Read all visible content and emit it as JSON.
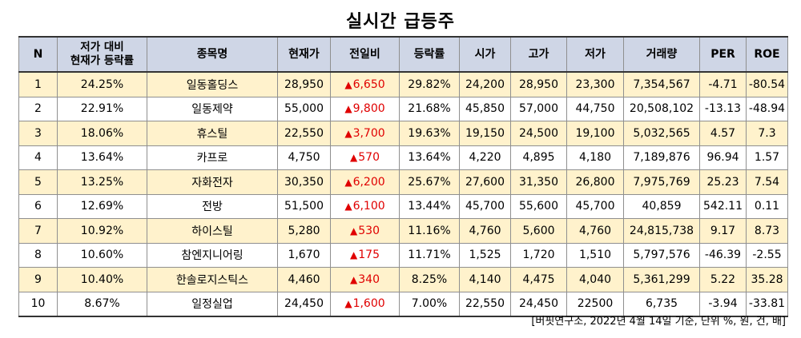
{
  "title": "실시간 급등주",
  "headers": {
    "n": "N",
    "ratio_line1": "저가 대비",
    "ratio_line2": "현재가 등락률",
    "name": "종목명",
    "price": "현재가",
    "change": "전일비",
    "rate": "등락률",
    "open": "시가",
    "high": "고가",
    "low": "저가",
    "volume": "거래량",
    "per": "PER",
    "roe": "ROE"
  },
  "change_marker": "▲",
  "rows": [
    {
      "n": "1",
      "ratio": "24.25%",
      "name": "일동홀딩스",
      "price": "28,950",
      "change": "6,650",
      "rate": "29.82%",
      "open": "24,200",
      "high": "28,950",
      "low": "23,300",
      "volume": "7,354,567",
      "per": "-4.71",
      "roe": "-80.54"
    },
    {
      "n": "2",
      "ratio": "22.91%",
      "name": "일동제약",
      "price": "55,000",
      "change": "9,800",
      "rate": "21.68%",
      "open": "45,850",
      "high": "57,000",
      "low": "44,750",
      "volume": "20,508,102",
      "per": "-13.13",
      "roe": "-48.94"
    },
    {
      "n": "3",
      "ratio": "18.06%",
      "name": "휴스틸",
      "price": "22,550",
      "change": "3,700",
      "rate": "19.63%",
      "open": "19,150",
      "high": "24,500",
      "low": "19,100",
      "volume": "5,032,565",
      "per": "4.57",
      "roe": "7.3"
    },
    {
      "n": "4",
      "ratio": "13.64%",
      "name": "카프로",
      "price": "4,750",
      "change": "570",
      "rate": "13.64%",
      "open": "4,220",
      "high": "4,895",
      "low": "4,180",
      "volume": "7,189,876",
      "per": "96.94",
      "roe": "1.57"
    },
    {
      "n": "5",
      "ratio": "13.25%",
      "name": "자화전자",
      "price": "30,350",
      "change": "6,200",
      "rate": "25.67%",
      "open": "27,600",
      "high": "31,350",
      "low": "26,800",
      "volume": "7,975,769",
      "per": "25.23",
      "roe": "7.54"
    },
    {
      "n": "6",
      "ratio": "12.69%",
      "name": "전방",
      "price": "51,500",
      "change": "6,100",
      "rate": "13.44%",
      "open": "45,700",
      "high": "55,600",
      "low": "45,700",
      "volume": "40,859",
      "per": "542.11",
      "roe": "0.11"
    },
    {
      "n": "7",
      "ratio": "10.92%",
      "name": "하이스틸",
      "price": "5,280",
      "change": "530",
      "rate": "11.16%",
      "open": "4,760",
      "high": "5,600",
      "low": "4,760",
      "volume": "24,815,738",
      "per": "9.17",
      "roe": "8.73"
    },
    {
      "n": "8",
      "ratio": "10.60%",
      "name": "참엔지니어링",
      "price": "1,670",
      "change": "175",
      "rate": "11.71%",
      "open": "1,525",
      "high": "1,720",
      "low": "1,510",
      "volume": "5,797,576",
      "per": "-46.39",
      "roe": "-2.55"
    },
    {
      "n": "9",
      "ratio": "10.40%",
      "name": "한솔로지스틱스",
      "price": "4,460",
      "change": "340",
      "rate": "8.25%",
      "open": "4,140",
      "high": "4,475",
      "low": "4,040",
      "volume": "5,361,299",
      "per": "5.22",
      "roe": "35.28"
    },
    {
      "n": "10",
      "ratio": "8.67%",
      "name": "일정실업",
      "price": "24,450",
      "change": "1,600",
      "rate": "7.00%",
      "open": "22,550",
      "high": "24,450",
      "low": "22500",
      "volume": "6,735",
      "per": "-3.94",
      "roe": "-33.81"
    }
  ],
  "colors": {
    "header_bg": "#cfd6e6",
    "highlight_row_bg": "#fff2cc",
    "up_red": "#e00000"
  },
  "source_note": "[버핏연구소, 2022년 4월 14일 기준, 단위 %, 원, 건, 배]"
}
